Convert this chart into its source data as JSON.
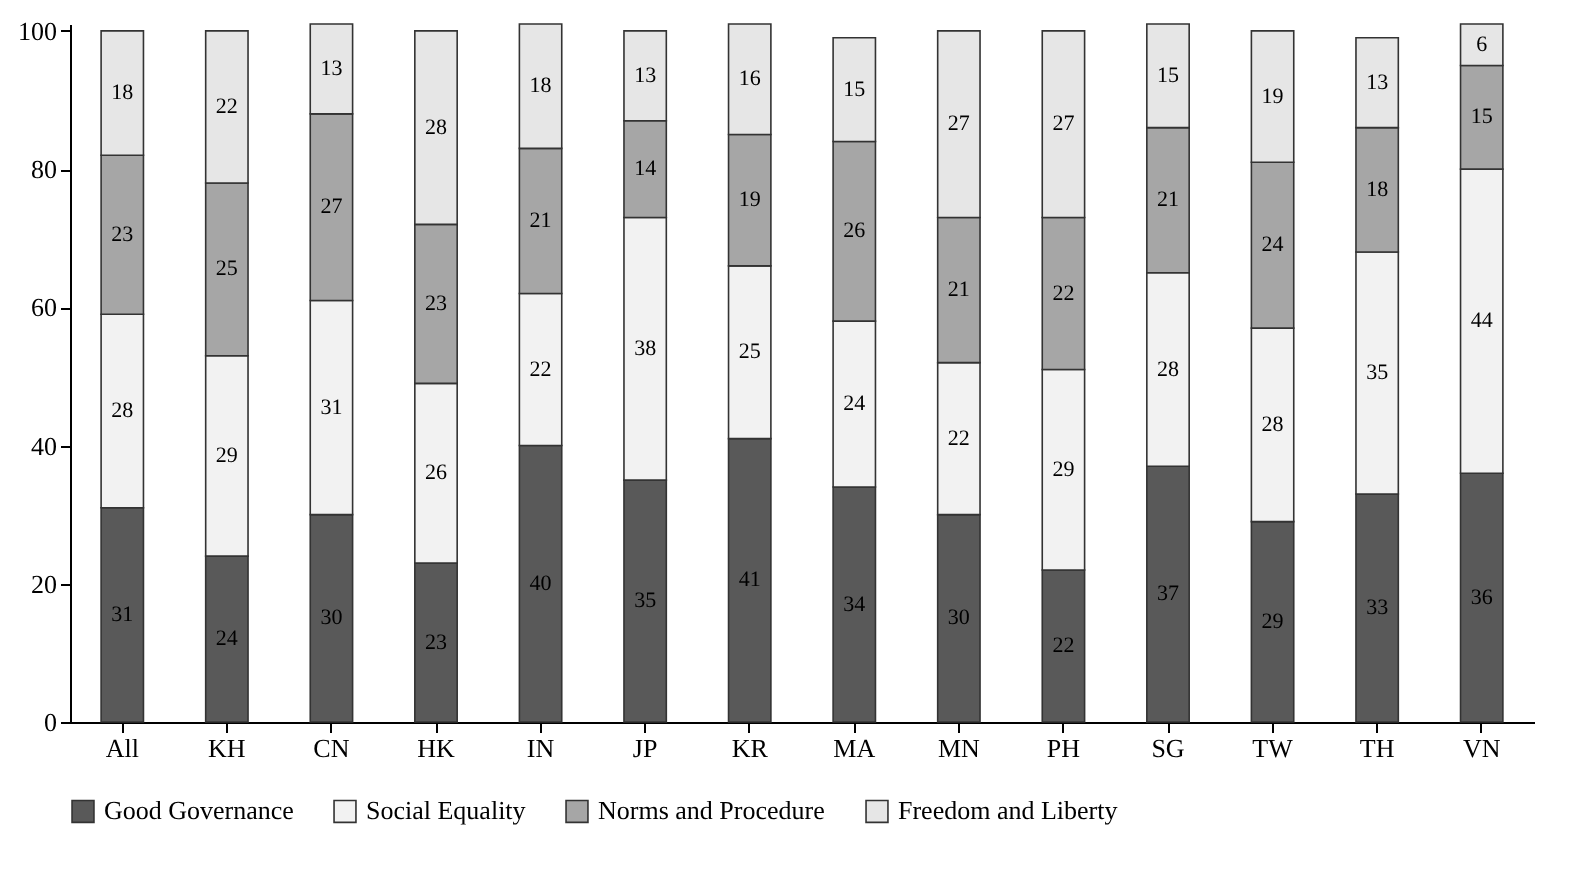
{
  "chart_data": {
    "type": "bar",
    "stacked": true,
    "categories": [
      "All",
      "KH",
      "CN",
      "HK",
      "IN",
      "JP",
      "KR",
      "MA",
      "MN",
      "PH",
      "SG",
      "TW",
      "TH",
      "VN"
    ],
    "series": [
      {
        "name": "Good Governance",
        "color": "#595959",
        "values": [
          31,
          24,
          30,
          23,
          40,
          35,
          41,
          34,
          30,
          22,
          37,
          29,
          33,
          36
        ]
      },
      {
        "name": "Social Equality",
        "color": "#f2f2f2",
        "values": [
          28,
          29,
          31,
          26,
          22,
          38,
          25,
          24,
          22,
          29,
          28,
          28,
          35,
          44
        ]
      },
      {
        "name": "Norms and Procedure",
        "color": "#a6a6a6",
        "values": [
          23,
          25,
          27,
          23,
          21,
          14,
          19,
          26,
          21,
          22,
          21,
          24,
          18,
          15
        ]
      },
      {
        "name": "Freedom and Liberty",
        "color": "#e6e6e6",
        "values": [
          18,
          22,
          13,
          28,
          18,
          13,
          16,
          15,
          27,
          27,
          15,
          19,
          13,
          6
        ]
      }
    ],
    "ylim": [
      0,
      101
    ],
    "yticks": [
      0,
      20,
      40,
      60,
      80,
      100
    ],
    "grid": false,
    "legend": "bottom",
    "data_labels": true
  }
}
